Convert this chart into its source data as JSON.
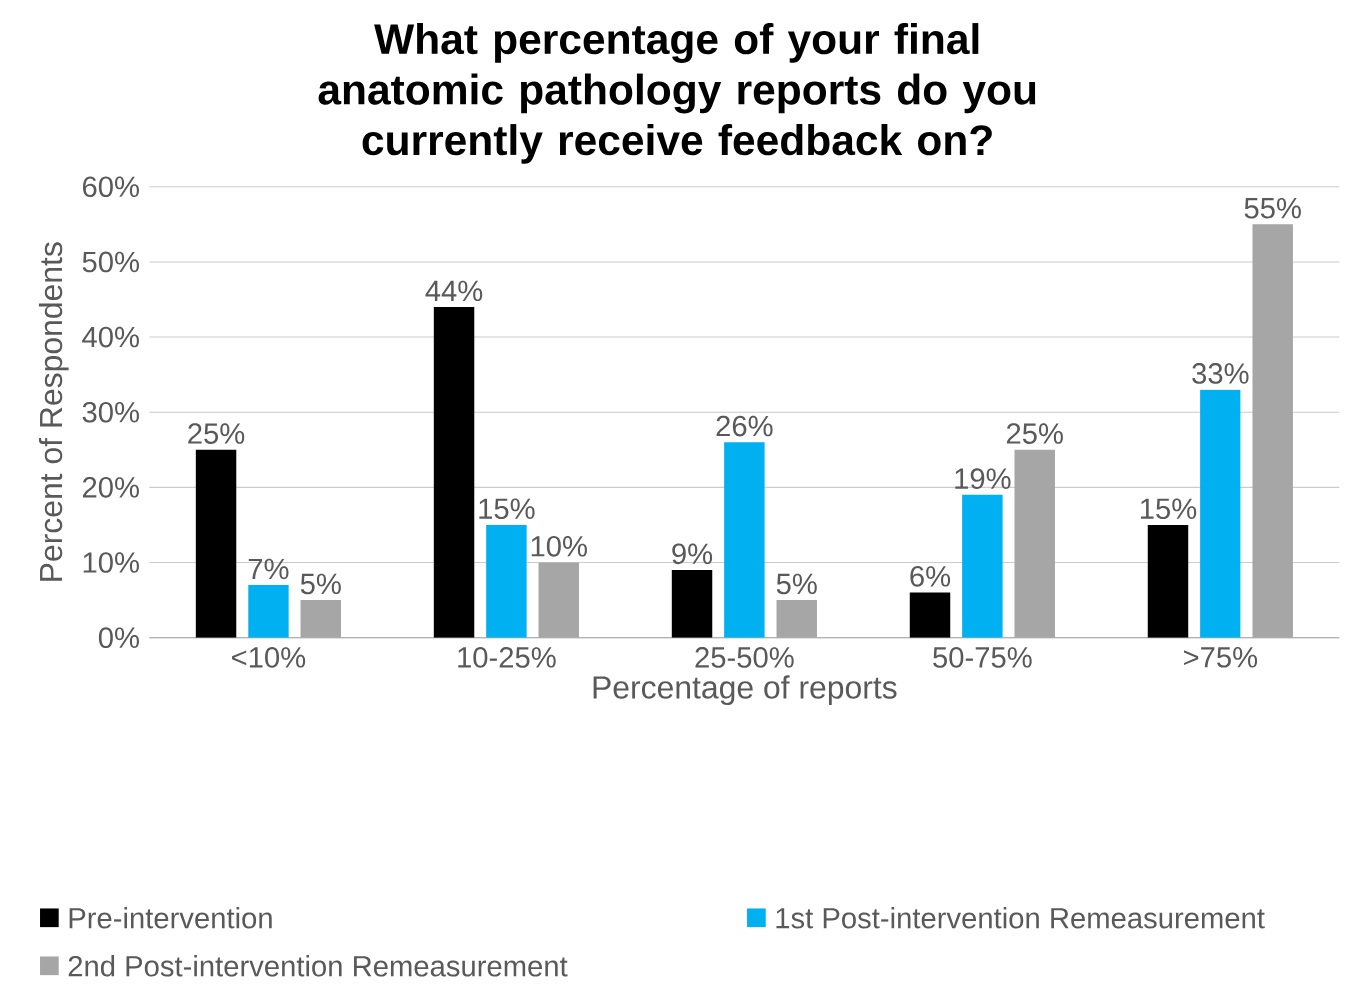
{
  "chart_data": {
    "type": "bar",
    "title": "What percentage of your final anatomic pathology reports do you currently receive feedback on?",
    "xlabel": "Percentage of reports",
    "ylabel": "Percent of Respondents",
    "categories": [
      "<10%",
      "10-25%",
      "25-50%",
      "50-75%",
      ">75%"
    ],
    "series": [
      {
        "name": "Pre-intervention",
        "color": "#000000",
        "values": [
          25,
          44,
          9,
          6,
          15
        ],
        "value_labels": [
          "25%",
          "44%",
          "9%",
          "6%",
          "15%"
        ]
      },
      {
        "name": "1st Post-intervention Remeasurement",
        "color": "#00b0f0",
        "values": [
          7,
          15,
          26,
          19,
          33
        ],
        "value_labels": [
          "7%",
          "15%",
          "26%",
          "19%",
          "33%"
        ]
      },
      {
        "name": "2nd Post-intervention Remeasurement",
        "color": "#a6a6a6",
        "values": [
          5,
          10,
          5,
          25,
          55
        ],
        "value_labels": [
          "5%",
          "10%",
          "5%",
          "25%",
          "55%"
        ]
      }
    ],
    "ylim": [
      0,
      60
    ],
    "yticks": [
      {
        "value": 0,
        "label": "0%"
      },
      {
        "value": 10,
        "label": "10%"
      },
      {
        "value": 20,
        "label": "20%"
      },
      {
        "value": 30,
        "label": "30%"
      },
      {
        "value": 40,
        "label": "40%"
      },
      {
        "value": 50,
        "label": "50%"
      },
      {
        "value": 60,
        "label": "60%"
      }
    ],
    "grid": "y",
    "legend": "bottom"
  }
}
